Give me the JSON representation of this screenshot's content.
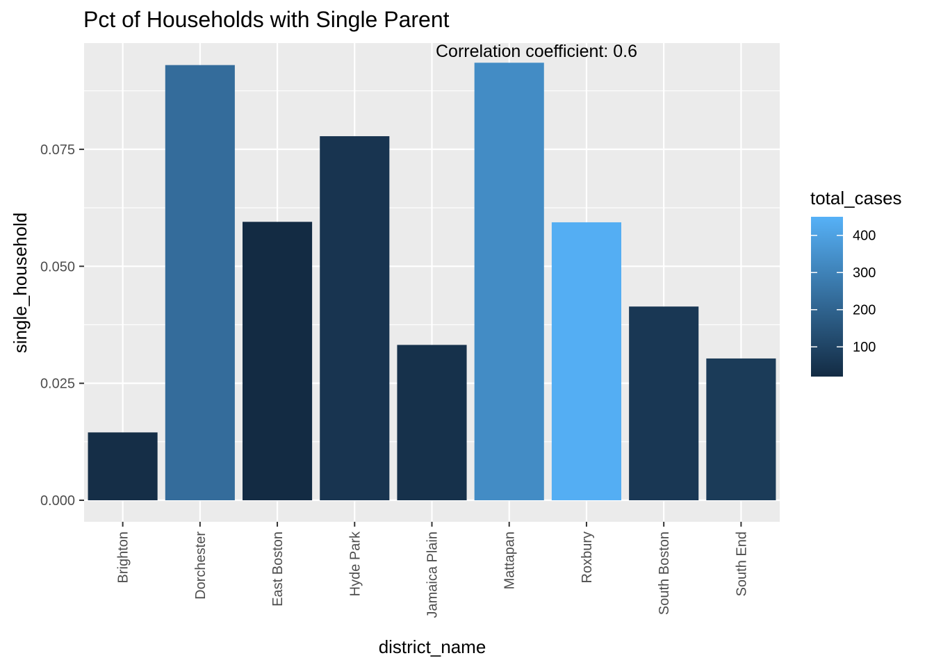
{
  "chart_data": {
    "type": "bar",
    "title": "Pct of Households with Single Parent",
    "annotation": "Correlation coefficient:  0.6",
    "xlabel": "district_name",
    "ylabel": "single_household",
    "categories": [
      "Brighton",
      "Dorchester",
      "East Boston",
      "Hyde Park",
      "Jamaica Plain",
      "Mattapan",
      "Roxbury",
      "South Boston",
      "South End"
    ],
    "values": [
      0.0145,
      0.093,
      0.0595,
      0.0778,
      0.0332,
      0.0935,
      0.0594,
      0.0414,
      0.0303
    ],
    "fill_values": [
      30,
      230,
      20,
      50,
      40,
      330,
      440,
      60,
      70
    ],
    "ylim": [
      -0.0046,
      0.0977
    ],
    "yticks": [
      0.0,
      0.025,
      0.05,
      0.075
    ],
    "ytick_labels": [
      "0.000",
      "0.025",
      "0.050",
      "0.075"
    ],
    "grid": true,
    "legend": {
      "title": "total_cases",
      "placement": "right",
      "min": 20,
      "max": 450,
      "low_color": "#132B43",
      "high_color": "#56B1F7",
      "ticks": [
        100,
        200,
        300,
        400
      ],
      "tick_labels": [
        "100",
        "200",
        "300",
        "400"
      ]
    },
    "colors": {
      "panel": "#EBEBEB",
      "grid": "#FFFFFF",
      "axis_text": "#4D4D4D",
      "text": "#000000"
    }
  }
}
